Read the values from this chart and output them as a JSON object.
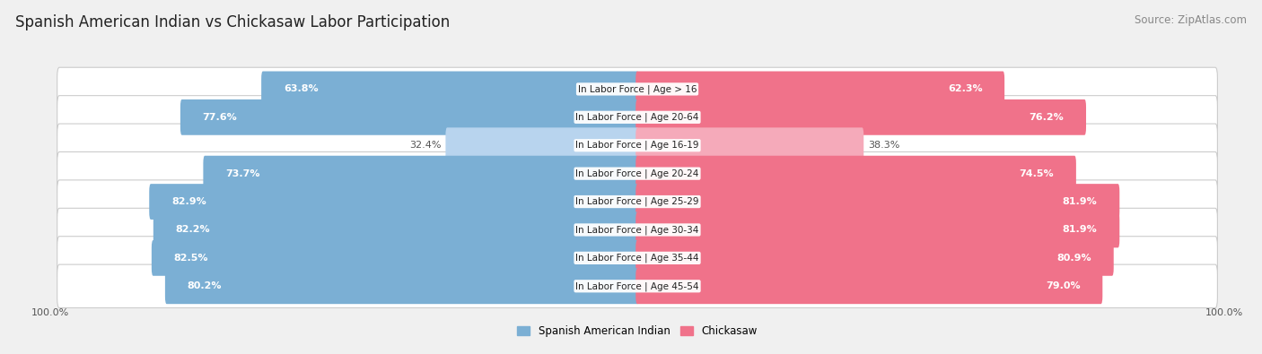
{
  "title": "Spanish American Indian vs Chickasaw Labor Participation",
  "source": "Source: ZipAtlas.com",
  "categories": [
    "In Labor Force | Age > 16",
    "In Labor Force | Age 20-64",
    "In Labor Force | Age 16-19",
    "In Labor Force | Age 20-24",
    "In Labor Force | Age 25-29",
    "In Labor Force | Age 30-34",
    "In Labor Force | Age 35-44",
    "In Labor Force | Age 45-54"
  ],
  "spanish_values": [
    63.8,
    77.6,
    32.4,
    73.7,
    82.9,
    82.2,
    82.5,
    80.2
  ],
  "chickasaw_values": [
    62.3,
    76.2,
    38.3,
    74.5,
    81.9,
    81.9,
    80.9,
    79.0
  ],
  "spanish_color": "#7BAFD4",
  "chickasaw_color": "#F0728A",
  "spanish_color_light": "#B8D4EE",
  "chickasaw_color_light": "#F5AABA",
  "background_color": "#f0f0f0",
  "row_bg_color": "#e0e0e0",
  "bar_height": 0.72,
  "max_value": 100.0,
  "legend_label_spanish": "Spanish American Indian",
  "legend_label_chickasaw": "Chickasaw",
  "title_fontsize": 12,
  "source_fontsize": 8.5,
  "label_fontsize": 8,
  "category_fontsize": 7.5,
  "axis_label_fontsize": 8
}
